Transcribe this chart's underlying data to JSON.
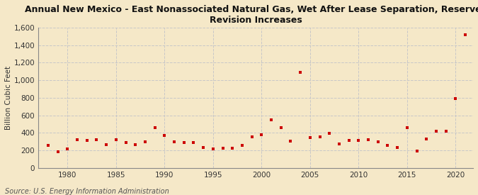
{
  "title": "Annual New Mexico - East Nonassociated Natural Gas, Wet After Lease Separation, Reserves\nRevision Increases",
  "ylabel": "Billion Cubic Feet",
  "source": "Source: U.S. Energy Information Administration",
  "background_color": "#f5e8c8",
  "marker_color": "#cc0000",
  "years": [
    1978,
    1979,
    1980,
    1981,
    1982,
    1983,
    1984,
    1985,
    1986,
    1987,
    1988,
    1989,
    1990,
    1991,
    1992,
    1993,
    1994,
    1995,
    1996,
    1997,
    1998,
    1999,
    2000,
    2001,
    2002,
    2003,
    2004,
    2005,
    2006,
    2007,
    2008,
    2009,
    2010,
    2011,
    2012,
    2013,
    2014,
    2015,
    2016,
    2017,
    2018,
    2019,
    2020,
    2021
  ],
  "values": [
    255,
    185,
    215,
    325,
    310,
    325,
    265,
    325,
    290,
    265,
    295,
    455,
    370,
    300,
    290,
    285,
    235,
    215,
    225,
    225,
    260,
    350,
    380,
    545,
    455,
    305,
    1090,
    345,
    355,
    395,
    270,
    315,
    310,
    325,
    300,
    260,
    235,
    460,
    195,
    330,
    420,
    415,
    790,
    1520
  ],
  "ylim": [
    0,
    1600
  ],
  "yticks": [
    0,
    200,
    400,
    600,
    800,
    1000,
    1200,
    1400,
    1600
  ],
  "xlim_min": 1977.0,
  "xlim_max": 2021.8,
  "xticks": [
    1980,
    1985,
    1990,
    1995,
    2000,
    2005,
    2010,
    2015,
    2020
  ],
  "grid_color": "#c8c8c8",
  "spine_color": "#888888",
  "title_fontsize": 9.0,
  "ylabel_fontsize": 7.5,
  "tick_fontsize": 7.5,
  "source_fontsize": 7.0,
  "marker_size": 10
}
